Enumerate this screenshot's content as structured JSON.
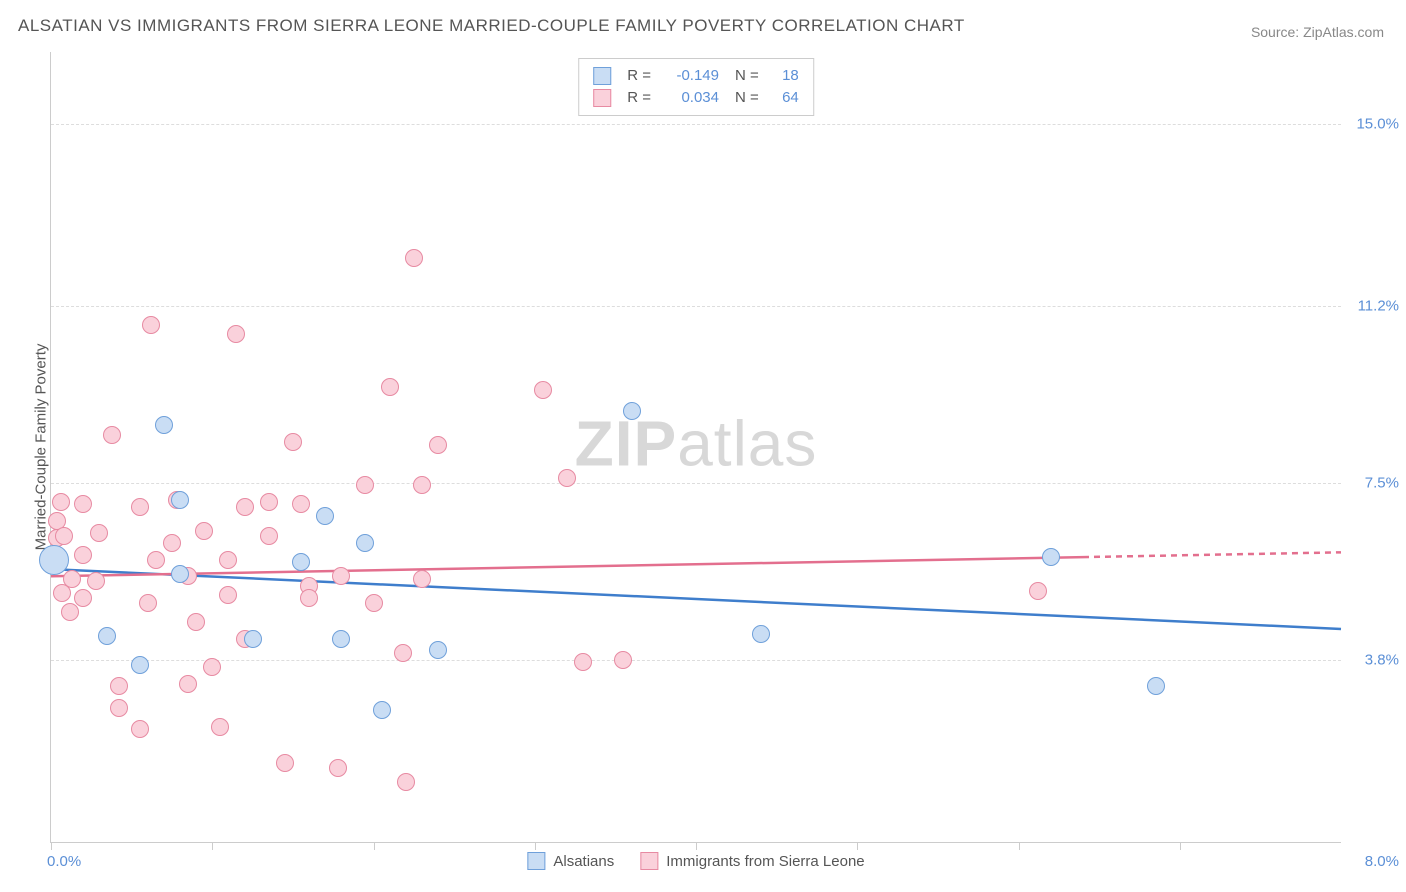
{
  "title": "ALSATIAN VS IMMIGRANTS FROM SIERRA LEONE MARRIED-COUPLE FAMILY POVERTY CORRELATION CHART",
  "source": "Source: ZipAtlas.com",
  "watermark": {
    "bold": "ZIP",
    "rest": "atlas"
  },
  "chart": {
    "type": "scatter",
    "background_color": "#ffffff",
    "grid_color": "#dddddd",
    "axis_color": "#cccccc",
    "tick_label_color": "#5b8fd6",
    "text_color": "#555555",
    "xlim": [
      0.0,
      8.0
    ],
    "ylim": [
      0.0,
      16.5
    ],
    "x_ticks": [
      0,
      1,
      2,
      3,
      4,
      5,
      6,
      7
    ],
    "x_min_label": "0.0%",
    "x_max_label": "8.0%",
    "y_gridlines": [
      {
        "value": 3.8,
        "label": "3.8%"
      },
      {
        "value": 7.5,
        "label": "7.5%"
      },
      {
        "value": 11.2,
        "label": "11.2%"
      },
      {
        "value": 15.0,
        "label": "15.0%"
      }
    ],
    "y_axis_label": "Married-Couple Family Poverty"
  },
  "series": [
    {
      "name": "Alsatians",
      "fill_color": "#c9ddf4",
      "stroke_color": "#6fa0da",
      "line_color": "#3f7ecc",
      "marker_radius": 9,
      "R": "-0.149",
      "N": "18",
      "regression": {
        "x1": 0.0,
        "y1": 5.7,
        "x2": 8.0,
        "y2": 4.45
      },
      "dashed_from_x": null,
      "points": [
        {
          "x": 0.02,
          "y": 5.9,
          "r": 15
        },
        {
          "x": 0.35,
          "y": 4.3
        },
        {
          "x": 0.55,
          "y": 3.7
        },
        {
          "x": 0.7,
          "y": 8.7
        },
        {
          "x": 0.8,
          "y": 7.15
        },
        {
          "x": 0.8,
          "y": 5.6
        },
        {
          "x": 1.25,
          "y": 4.25
        },
        {
          "x": 1.55,
          "y": 5.85
        },
        {
          "x": 1.7,
          "y": 6.8
        },
        {
          "x": 1.8,
          "y": 4.25
        },
        {
          "x": 1.95,
          "y": 6.25
        },
        {
          "x": 2.05,
          "y": 2.75
        },
        {
          "x": 2.4,
          "y": 4.0
        },
        {
          "x": 3.6,
          "y": 9.0
        },
        {
          "x": 4.4,
          "y": 4.35
        },
        {
          "x": 6.2,
          "y": 5.95
        },
        {
          "x": 6.85,
          "y": 3.25
        }
      ]
    },
    {
      "name": "Immigrants from Sierra Leone",
      "fill_color": "#fad1db",
      "stroke_color": "#e78aa2",
      "line_color": "#e36f8e",
      "marker_radius": 9,
      "R": "0.034",
      "N": "64",
      "regression": {
        "x1": 0.0,
        "y1": 5.55,
        "x2": 8.0,
        "y2": 6.05
      },
      "dashed_from_x": 6.4,
      "points": [
        {
          "x": 0.03,
          "y": 6.0
        },
        {
          "x": 0.04,
          "y": 6.35
        },
        {
          "x": 0.04,
          "y": 6.7
        },
        {
          "x": 0.06,
          "y": 7.1
        },
        {
          "x": 0.07,
          "y": 5.2
        },
        {
          "x": 0.08,
          "y": 6.4
        },
        {
          "x": 0.12,
          "y": 4.8
        },
        {
          "x": 0.13,
          "y": 5.5
        },
        {
          "x": 0.2,
          "y": 7.05
        },
        {
          "x": 0.2,
          "y": 6.0
        },
        {
          "x": 0.2,
          "y": 5.1
        },
        {
          "x": 0.28,
          "y": 5.45
        },
        {
          "x": 0.3,
          "y": 6.45
        },
        {
          "x": 0.38,
          "y": 8.5
        },
        {
          "x": 0.42,
          "y": 2.8
        },
        {
          "x": 0.42,
          "y": 3.25
        },
        {
          "x": 0.55,
          "y": 2.35
        },
        {
          "x": 0.55,
          "y": 7.0
        },
        {
          "x": 0.6,
          "y": 5.0
        },
        {
          "x": 0.62,
          "y": 10.8
        },
        {
          "x": 0.65,
          "y": 5.9
        },
        {
          "x": 0.75,
          "y": 6.25
        },
        {
          "x": 0.78,
          "y": 7.15
        },
        {
          "x": 0.85,
          "y": 3.3
        },
        {
          "x": 0.85,
          "y": 5.55
        },
        {
          "x": 0.9,
          "y": 4.6
        },
        {
          "x": 0.95,
          "y": 6.5
        },
        {
          "x": 1.0,
          "y": 3.65
        },
        {
          "x": 1.05,
          "y": 2.4
        },
        {
          "x": 1.1,
          "y": 5.15
        },
        {
          "x": 1.1,
          "y": 5.9
        },
        {
          "x": 1.15,
          "y": 10.6
        },
        {
          "x": 1.2,
          "y": 7.0
        },
        {
          "x": 1.2,
          "y": 4.25
        },
        {
          "x": 1.35,
          "y": 7.1
        },
        {
          "x": 1.35,
          "y": 6.4
        },
        {
          "x": 1.45,
          "y": 1.65
        },
        {
          "x": 1.5,
          "y": 8.35
        },
        {
          "x": 1.55,
          "y": 7.05
        },
        {
          "x": 1.6,
          "y": 5.35
        },
        {
          "x": 1.6,
          "y": 5.1
        },
        {
          "x": 1.78,
          "y": 1.55
        },
        {
          "x": 1.8,
          "y": 5.55
        },
        {
          "x": 1.95,
          "y": 7.45
        },
        {
          "x": 2.0,
          "y": 5.0
        },
        {
          "x": 2.1,
          "y": 9.5
        },
        {
          "x": 2.18,
          "y": 3.95
        },
        {
          "x": 2.2,
          "y": 1.25
        },
        {
          "x": 2.25,
          "y": 12.2
        },
        {
          "x": 2.3,
          "y": 7.45
        },
        {
          "x": 2.3,
          "y": 5.5
        },
        {
          "x": 2.4,
          "y": 8.3
        },
        {
          "x": 3.05,
          "y": 9.45
        },
        {
          "x": 3.2,
          "y": 7.6
        },
        {
          "x": 3.3,
          "y": 3.75
        },
        {
          "x": 3.55,
          "y": 3.8
        },
        {
          "x": 6.12,
          "y": 5.25
        }
      ]
    }
  ],
  "legend_top": {
    "R_prefix": "R =",
    "N_prefix": "N ="
  },
  "legend_bottom": [
    {
      "series": 0
    },
    {
      "series": 1
    }
  ]
}
